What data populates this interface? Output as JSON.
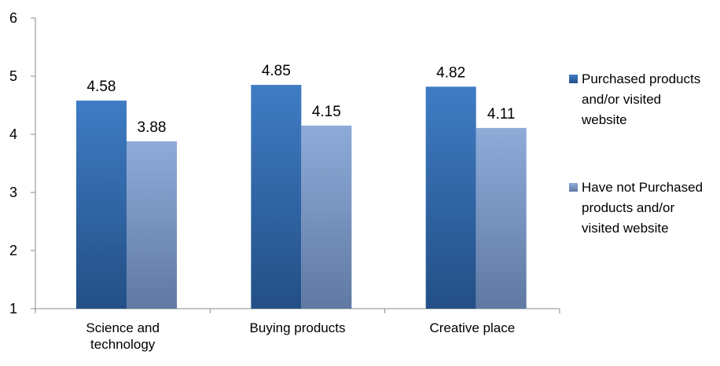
{
  "chart_data": {
    "type": "bar",
    "categories": [
      [
        "Science and",
        "technology"
      ],
      [
        "Buying products"
      ],
      [
        "Creative place"
      ]
    ],
    "series": [
      {
        "name": [
          "Purchased products",
          "and/or visited",
          "website"
        ],
        "values": [
          4.58,
          4.85,
          4.82
        ],
        "color_top": "#3f7cc4",
        "color_bottom": "#234f86"
      },
      {
        "name": [
          "Have not Purchased",
          "products and/or",
          "visited website"
        ],
        "values": [
          3.88,
          4.15,
          4.11
        ],
        "color_top": "#8eabd8",
        "color_bottom": "#5f79a3"
      }
    ],
    "value_labels": [
      [
        "4.58",
        "4.85",
        "4.82"
      ],
      [
        "3.88",
        "4.15",
        "4.11"
      ]
    ],
    "y_ticks": [
      "1",
      "2",
      "3",
      "4",
      "5",
      "6"
    ],
    "ylim": [
      1,
      6
    ],
    "grid": false,
    "legend_position": "right"
  }
}
